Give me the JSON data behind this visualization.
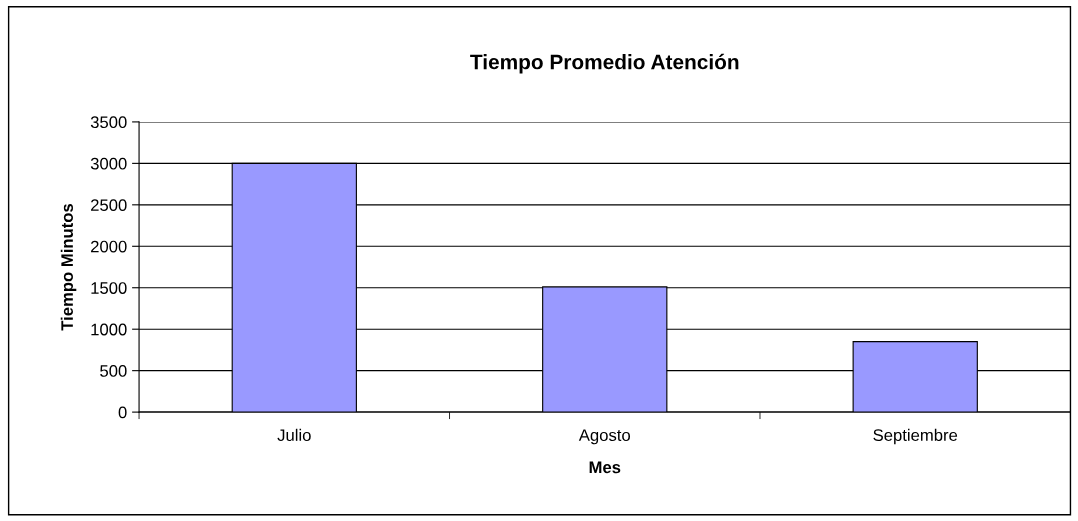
{
  "chart_data": {
    "type": "bar",
    "title": "Tiempo Promedio Atención",
    "xlabel": "Mes",
    "ylabel": "Tiempo Minutos",
    "categories": [
      "Julio",
      "Agosto",
      "Septiembre"
    ],
    "values": [
      3000,
      1510,
      850
    ],
    "color": "#9999ff",
    "ylim": [
      0,
      3500
    ],
    "yticks": [
      0,
      500,
      1000,
      1500,
      2000,
      2500,
      3000,
      3500
    ],
    "grid": "y",
    "legend": false
  }
}
